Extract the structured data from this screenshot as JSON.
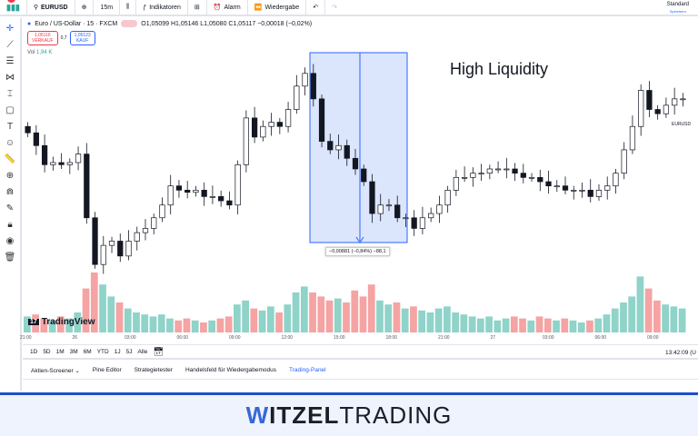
{
  "topbar": {
    "notif_count": "11",
    "symbol": "EURUSD",
    "interval": "15m",
    "indicators": "Indikatoren",
    "alarm": "Alarm",
    "replay": "Wiedergabe",
    "layout": "Standard",
    "save": "Speichern"
  },
  "legend": {
    "title": "Euro / US-Dollar · 15 · FXCM",
    "ohlc": "O1,05099 H1,05146 L1,05080 C1,05117 −0,00018 (−0,02%)",
    "sell_price": "1,05116",
    "sell_label": "VERKAUF",
    "spread": "0,7",
    "buy_price": "1,05123",
    "buy_label": "KAUF",
    "vol_label": "Vol",
    "vol_value": "1,94 K"
  },
  "annotation": {
    "text": "High Liquidity",
    "measure": "−0,00881 (−0,84%) −88,1"
  },
  "symbol_label": "EURUSD",
  "brand": "TradingView",
  "colors": {
    "up": "#26a69a",
    "down": "#ef5350",
    "vol_up": "#8fd3c9",
    "vol_down": "#f5a3a3",
    "measure_fill": "#dbe5fb",
    "measure_line": "#2962ff"
  },
  "time_axis": [
    "21:00",
    "26",
    "03:00",
    "06:00",
    "09:00",
    "12:00",
    "15:00",
    "18:00",
    "21:00",
    "27",
    "03:00",
    "06:00",
    "09:00",
    "12:0"
  ],
  "ranges": [
    "1D",
    "5D",
    "1M",
    "3M",
    "6M",
    "YTD",
    "1J",
    "5J",
    "Alle"
  ],
  "clock": "13:42:09 (U",
  "tabs": [
    "Aktien-Screener",
    "Pine Editor",
    "Strategietester",
    "Handelsfeld für Wiedergabemodus",
    "Trading-Panel"
  ],
  "footer": {
    "w": "W",
    "brand_bold": "ITZEL",
    "brand_light": "TRADING"
  },
  "chart_data": {
    "type": "candlestick",
    "price_range": [
      1.0399,
      1.0547
    ],
    "closes": [
      1.0493,
      1.0487,
      1.0478,
      1.0479,
      1.0478,
      1.0479,
      1.0483,
      1.0453,
      1.0431,
      1.044,
      1.0442,
      1.0435,
      1.0442,
      1.0446,
      1.0448,
      1.0453,
      1.0459,
      1.0468,
      1.0466,
      1.0465,
      1.0466,
      1.0463,
      1.0463,
      1.0461,
      1.0459,
      1.0478,
      1.05,
      1.0491,
      1.0496,
      1.0498,
      1.0496,
      1.0504,
      1.0515,
      1.0521,
      1.0509,
      1.0489,
      1.0485,
      1.0487,
      1.0481,
      1.0476,
      1.047,
      1.0455,
      1.0459,
      1.0459,
      1.0453,
      1.0453,
      1.0448,
      1.0453,
      1.0455,
      1.0459,
      1.0466,
      1.0472,
      1.0472,
      1.0474,
      1.0474,
      1.0476,
      1.0476,
      1.0476,
      1.0474,
      1.0472,
      1.0472,
      1.047,
      1.0468,
      1.0468,
      1.0466,
      1.0466,
      1.0466,
      1.0463,
      1.0466,
      1.0468,
      1.0474,
      1.0485,
      1.0496,
      1.0513,
      1.0504,
      1.0502,
      1.0506,
      1.0509,
      1.0509
    ],
    "volumes": [
      0.8,
      0.9,
      0.7,
      0.6,
      0.8,
      0.7,
      1.0,
      2.2,
      3.0,
      2.4,
      1.8,
      1.5,
      1.2,
      1.0,
      0.9,
      0.8,
      0.9,
      0.7,
      0.6,
      0.7,
      0.6,
      0.5,
      0.6,
      0.7,
      0.8,
      1.4,
      1.6,
      1.2,
      1.1,
      1.3,
      1.0,
      1.4,
      2.0,
      2.3,
      2.0,
      1.8,
      1.6,
      1.7,
      1.5,
      2.1,
      1.8,
      2.4,
      1.6,
      1.4,
      1.5,
      1.2,
      1.3,
      1.1,
      1.0,
      1.2,
      1.3,
      1.0,
      0.9,
      0.8,
      0.7,
      0.8,
      0.6,
      0.7,
      0.8,
      0.7,
      0.6,
      0.8,
      0.7,
      0.6,
      0.7,
      0.6,
      0.5,
      0.6,
      0.7,
      0.9,
      1.2,
      1.5,
      1.8,
      2.8,
      2.2,
      1.6,
      1.4,
      1.3,
      1.2
    ]
  }
}
